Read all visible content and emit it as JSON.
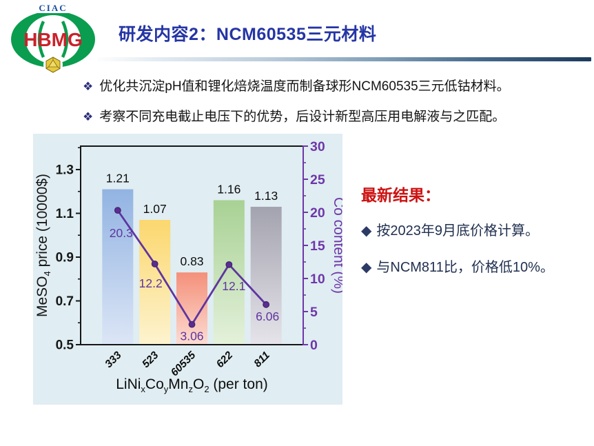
{
  "logo": {
    "org": "CIAC",
    "name": "HBMG"
  },
  "header": {
    "title": "研发内容2：NCM60535三元材料"
  },
  "bullets": {
    "marker": "❖",
    "items": [
      "优化共沉淀pH值和锂化焙烧温度而制备球形NCM60535三元低钴材料。",
      "考察不同充电截止电压下的优势，后设计新型高压用电解液与之匹配。"
    ]
  },
  "results": {
    "heading": "最新结果：",
    "marker": "◆",
    "items": [
      "按2023年9月底价格计算。",
      "与NCM811比，价格低10%。"
    ]
  },
  "colors": {
    "title_blue": "#2535a5",
    "result_red": "#cc1111",
    "result_navy": "#21304f",
    "panel_bg": "#e0edf2"
  },
  "chart_data": {
    "type": "bar+line",
    "categories": [
      "333",
      "523",
      "60535",
      "622",
      "811"
    ],
    "series": [
      {
        "name": "MeSO4 price",
        "type": "bar",
        "values": [
          1.21,
          1.07,
          0.83,
          1.16,
          1.13
        ],
        "labels": [
          "1.21",
          "1.07",
          "0.83",
          "1.16",
          "1.13"
        ],
        "colors_top": [
          "#92b3e2",
          "#fbd76e",
          "#f4907a",
          "#a8d194",
          "#a3a3af"
        ],
        "colors_bottom": [
          "#dce6f6",
          "#fdf3cf",
          "#fcdcd2",
          "#e4f1db",
          "#e6e4ea"
        ]
      },
      {
        "name": "Co content",
        "type": "line",
        "values": [
          20.3,
          12.2,
          3.06,
          12.1,
          6.06
        ],
        "labels": [
          "20.3",
          "12.2",
          "3.06",
          "12.1",
          "6.06"
        ],
        "label_offsets": [
          [
            5,
            33
          ],
          [
            -6,
            28
          ],
          [
            0,
            17
          ],
          [
            7,
            31
          ],
          [
            2,
            17
          ]
        ],
        "color": "#5e35a0",
        "marker_fill": "#5c2d90",
        "marker_stroke": "#3f2170"
      }
    ],
    "left_axis": {
      "title": "MeSO4 price (10000$)",
      "title_parts": [
        {
          "t": "MeSO"
        },
        {
          "t": "4",
          "sub": true
        },
        {
          "t": " price (10000$)"
        }
      ],
      "ticks": [
        "0.5",
        "0.7",
        "0.9",
        "1.1",
        "1.3"
      ],
      "range": [
        0.5,
        1.407
      ],
      "color": "#161616"
    },
    "right_axis": {
      "title": "Co content (%)",
      "ticks": [
        "0",
        "5",
        "10",
        "15",
        "20",
        "25",
        "30"
      ],
      "range": [
        0,
        30
      ],
      "color": "#6e37a8"
    },
    "x_axis": {
      "title": "LiNixCoyMnzO2 (per ton)",
      "title_parts": [
        {
          "t": "LiNi"
        },
        {
          "t": "x",
          "sub": true
        },
        {
          "t": "Co"
        },
        {
          "t": "y",
          "sub": true
        },
        {
          "t": "Mn"
        },
        {
          "t": "z",
          "sub": true
        },
        {
          "t": "O"
        },
        {
          "t": "2",
          "sub": true
        },
        {
          "t": " (per ton)"
        }
      ],
      "color": "#161616"
    },
    "legend": "none",
    "grid": false
  }
}
